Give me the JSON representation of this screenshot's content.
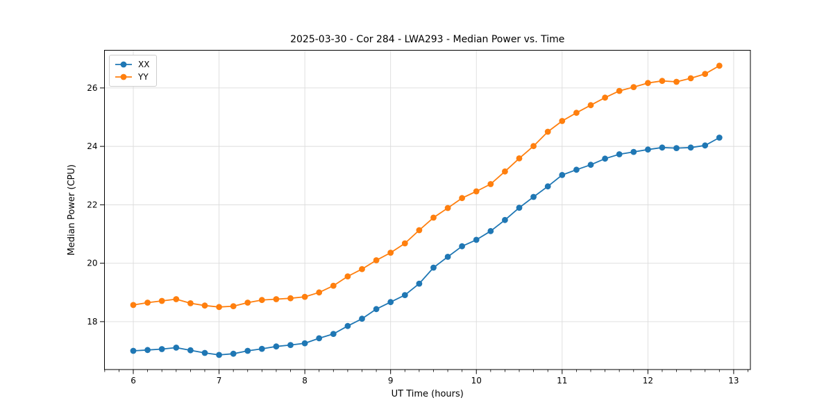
{
  "figure": {
    "background": "#ffffff",
    "grid_color": "#dcdcdc",
    "spine_color": "#000000"
  },
  "chart_data": {
    "type": "line",
    "title": "2025-03-30 - Cor 284 - LWA293 - Median Power vs. Time",
    "xlabel": "UT Time (hours)",
    "ylabel": "Median Power (CPU)",
    "xlim": [
      5.664,
      13.195
    ],
    "ylim": [
      16.36,
      27.29
    ],
    "xticks": [
      6,
      7,
      8,
      9,
      10,
      11,
      12,
      13
    ],
    "xtick_labels": [
      "6",
      "7",
      "8",
      "9",
      "10",
      "11",
      "12",
      "13"
    ],
    "yticks": [
      18,
      20,
      22,
      24,
      26
    ],
    "ytick_labels": [
      "18",
      "20",
      "22",
      "24",
      "26"
    ],
    "x_minor_step": 0.166667,
    "grid": true,
    "legend_position": "upper left",
    "x": [
      6.0,
      6.1667,
      6.3333,
      6.5,
      6.6667,
      6.8333,
      7.0,
      7.1667,
      7.3333,
      7.5,
      7.6667,
      7.8333,
      8.0,
      8.1667,
      8.3333,
      8.5,
      8.6667,
      8.8333,
      9.0,
      9.1667,
      9.3333,
      9.5,
      9.6667,
      9.8333,
      10.0,
      10.1667,
      10.3333,
      10.5,
      10.6667,
      10.8333,
      11.0,
      11.1667,
      11.3333,
      11.5,
      11.6667,
      11.8333,
      12.0,
      12.1667,
      12.3333,
      12.5,
      12.6667,
      12.8333
    ],
    "series": [
      {
        "name": "XX",
        "color": "#1f77b4",
        "values": [
          17.0,
          17.03,
          17.06,
          17.11,
          17.02,
          16.93,
          16.86,
          16.9,
          17.0,
          17.07,
          17.15,
          17.2,
          17.26,
          17.43,
          17.58,
          17.85,
          18.1,
          18.43,
          18.67,
          18.91,
          19.3,
          19.85,
          20.22,
          20.58,
          20.8,
          21.1,
          21.48,
          21.9,
          22.27,
          22.63,
          23.02,
          23.2,
          23.37,
          23.58,
          23.73,
          23.81,
          23.89,
          23.96,
          23.94,
          23.96,
          24.03,
          24.3
        ]
      },
      {
        "name": "YY",
        "color": "#ff7f0e",
        "values": [
          18.57,
          18.65,
          18.71,
          18.77,
          18.63,
          18.55,
          18.5,
          18.53,
          18.65,
          18.74,
          18.77,
          18.8,
          18.85,
          19.0,
          19.23,
          19.55,
          19.8,
          20.1,
          20.36,
          20.68,
          21.13,
          21.56,
          21.89,
          22.23,
          22.46,
          22.71,
          23.14,
          23.59,
          24.01,
          24.5,
          24.87,
          25.15,
          25.41,
          25.67,
          25.9,
          26.03,
          26.17,
          26.24,
          26.21,
          26.33,
          26.48,
          26.76
        ]
      }
    ]
  }
}
